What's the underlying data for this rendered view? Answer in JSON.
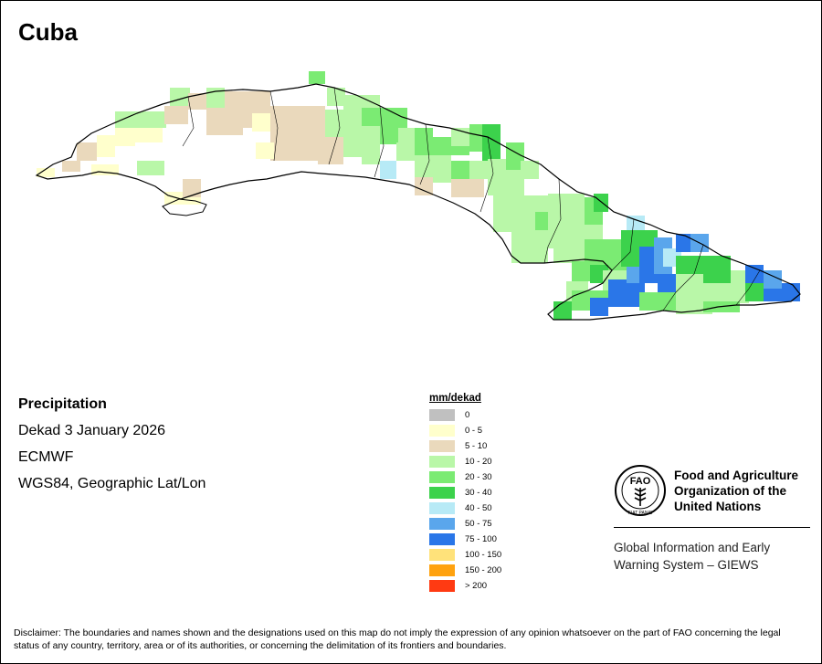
{
  "title": "Cuba",
  "map_info": {
    "variable": "Precipitation",
    "period": "Dekad 3 January 2026",
    "source": "ECMWF",
    "projection": "WGS84, Geographic Lat/Lon"
  },
  "legend": {
    "title": "mm/dekad",
    "classes": [
      {
        "label": "0",
        "color": "#c0c0c0"
      },
      {
        "label": "0 - 5",
        "color": "#ffffcc"
      },
      {
        "label": "5 - 10",
        "color": "#ead9bc"
      },
      {
        "label": "10 - 20",
        "color": "#b9f7a8"
      },
      {
        "label": "20 - 30",
        "color": "#7beb73"
      },
      {
        "label": "30 - 40",
        "color": "#3cd24c"
      },
      {
        "label": "40 - 50",
        "color": "#b7eaf6"
      },
      {
        "label": "50 - 75",
        "color": "#5aa6ec"
      },
      {
        "label": "75 - 100",
        "color": "#2a76e8"
      },
      {
        "label": "100 - 150",
        "color": "#ffe27a"
      },
      {
        "label": "150 - 200",
        "color": "#ffa20f"
      },
      {
        "label": "> 200",
        "color": "#ff3a12"
      }
    ]
  },
  "organization": {
    "name": "Food and Agriculture\nOrganization of the\nUnited Nations",
    "system": "Global Information and Early\nWarning System – GIEWS",
    "logo_text": "FAO",
    "logo_motto": "FIAT PANIS"
  },
  "disclaimer": "Disclaimer: The boundaries and names shown and the designations used on this map do not imply the expression of any opinion whatsoever on the part of FAO concerning the legal status of any country, territory, area or of its authorities, or concerning the delimitation of its frontiers and boundaries."
}
